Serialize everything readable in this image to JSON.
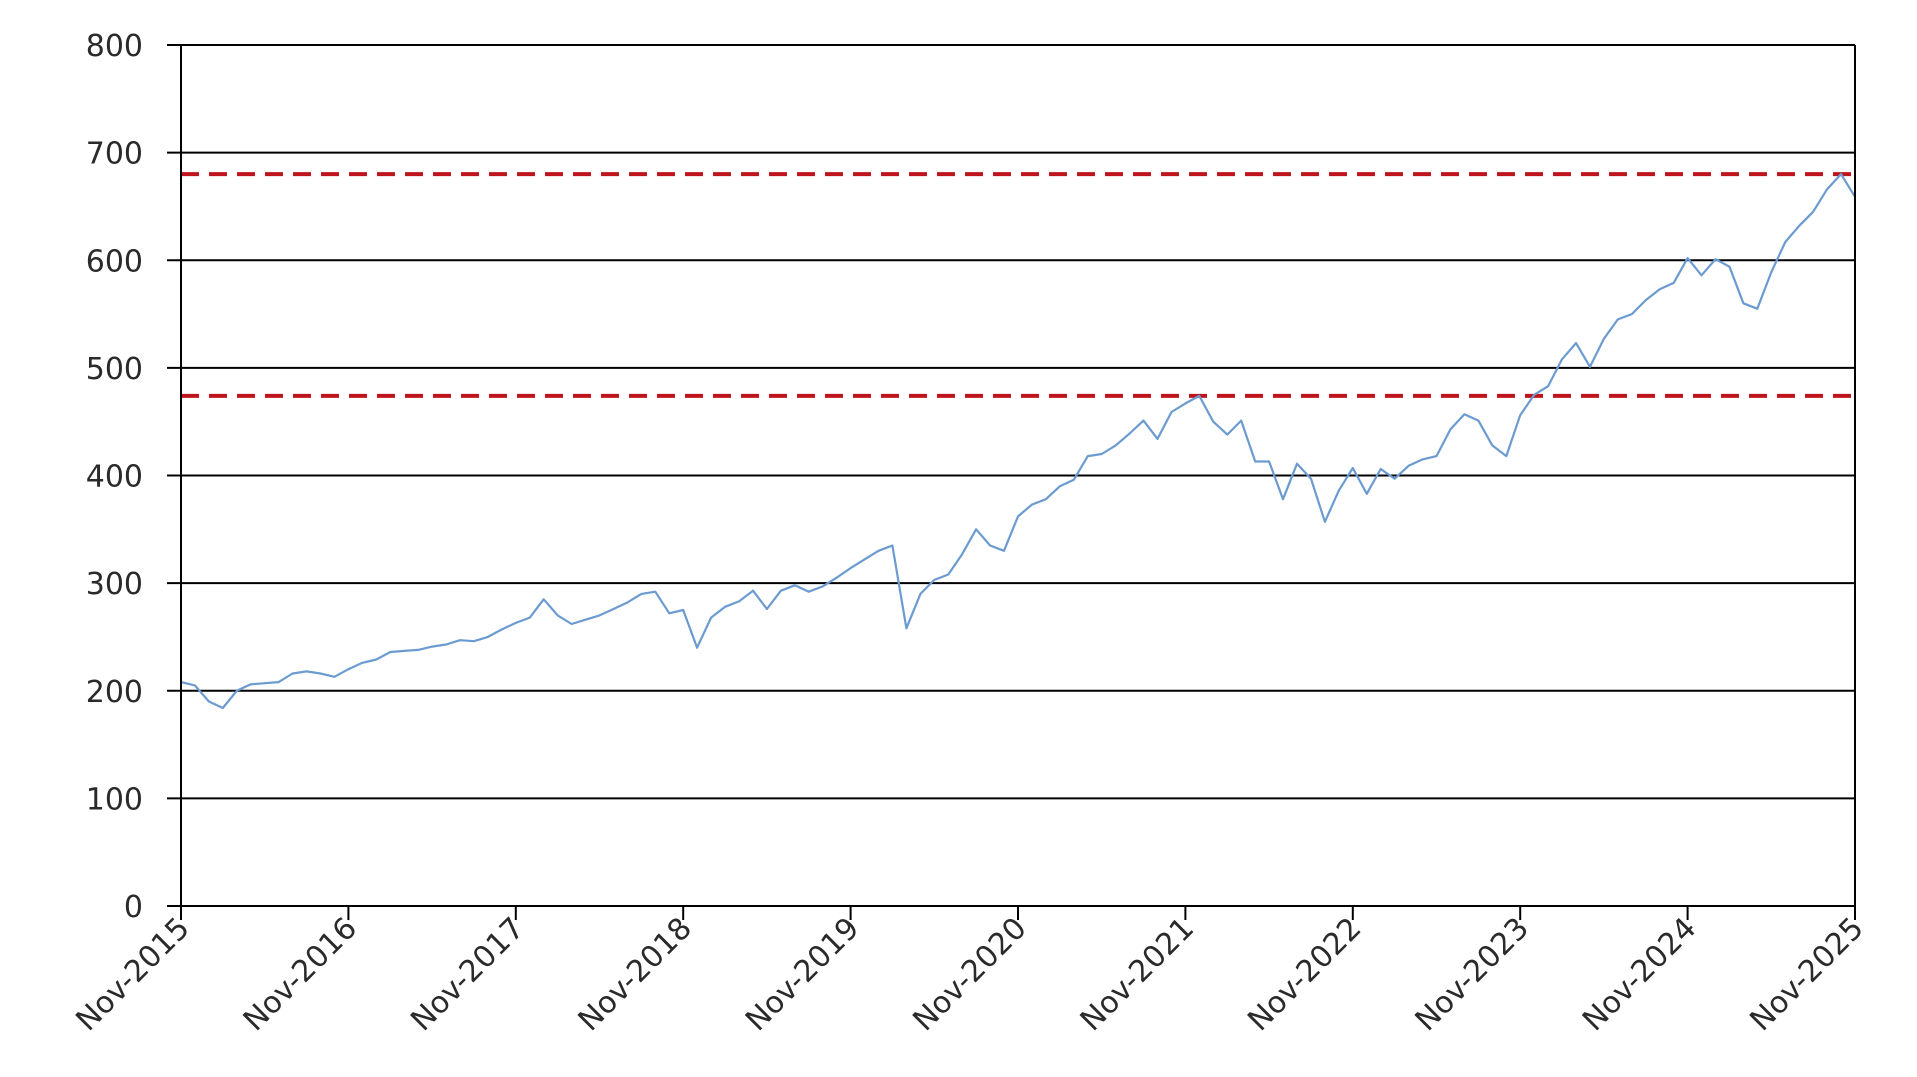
{
  "chart_data": {
    "type": "line",
    "title": "",
    "xlabel": "",
    "ylabel": "",
    "ylim": [
      0,
      800
    ],
    "yticks": [
      0,
      100,
      200,
      300,
      400,
      500,
      600,
      700,
      800
    ],
    "ytick_labels": [
      "0",
      "100",
      "200",
      "300",
      "400",
      "500",
      "600",
      "700",
      "800"
    ],
    "xlim": [
      "2015-11",
      "2025-11"
    ],
    "xticks": [
      "2015-11",
      "2016-11",
      "2017-11",
      "2018-11",
      "2019-11",
      "2020-11",
      "2021-11",
      "2022-11",
      "2023-11",
      "2024-11",
      "2025-11"
    ],
    "xtick_labels": [
      "Nov-2015",
      "Nov-2016",
      "Nov-2017",
      "Nov-2018",
      "Nov-2019",
      "Nov-2020",
      "Nov-2021",
      "Nov-2022",
      "Nov-2023",
      "Nov-2024",
      "Nov-2025"
    ],
    "grid": "horizontal",
    "legend": "none",
    "series": [
      {
        "color": "#6b9bd0",
        "x": [
          "2015-11",
          "2015-12",
          "2016-01",
          "2016-02",
          "2016-03",
          "2016-04",
          "2016-05",
          "2016-06",
          "2016-07",
          "2016-08",
          "2016-09",
          "2016-10",
          "2016-11",
          "2016-12",
          "2017-01",
          "2017-02",
          "2017-03",
          "2017-04",
          "2017-05",
          "2017-06",
          "2017-07",
          "2017-08",
          "2017-09",
          "2017-10",
          "2017-11",
          "2017-12",
          "2018-01",
          "2018-02",
          "2018-03",
          "2018-04",
          "2018-05",
          "2018-06",
          "2018-07",
          "2018-08",
          "2018-09",
          "2018-10",
          "2018-11",
          "2018-12",
          "2019-01",
          "2019-02",
          "2019-03",
          "2019-04",
          "2019-05",
          "2019-06",
          "2019-07",
          "2019-08",
          "2019-09",
          "2019-10",
          "2019-11",
          "2019-12",
          "2020-01",
          "2020-02",
          "2020-03",
          "2020-04",
          "2020-05",
          "2020-06",
          "2020-07",
          "2020-08",
          "2020-09",
          "2020-10",
          "2020-11",
          "2020-12",
          "2021-01",
          "2021-02",
          "2021-03",
          "2021-04",
          "2021-05",
          "2021-06",
          "2021-07",
          "2021-08",
          "2021-09",
          "2021-10",
          "2021-11",
          "2021-12",
          "2022-01",
          "2022-02",
          "2022-03",
          "2022-04",
          "2022-05",
          "2022-06",
          "2022-07",
          "2022-08",
          "2022-09",
          "2022-10",
          "2022-11",
          "2022-12",
          "2023-01",
          "2023-02",
          "2023-03",
          "2023-04",
          "2023-05",
          "2023-06",
          "2023-07",
          "2023-08",
          "2023-09",
          "2023-10",
          "2023-11",
          "2023-12",
          "2024-01",
          "2024-02",
          "2024-03",
          "2024-04",
          "2024-05",
          "2024-06",
          "2024-07",
          "2024-08",
          "2024-09",
          "2024-10",
          "2024-11",
          "2024-12",
          "2025-01",
          "2025-02",
          "2025-03",
          "2025-04",
          "2025-05",
          "2025-06",
          "2025-07",
          "2025-08",
          "2025-09",
          "2025-10",
          "2025-11"
        ],
        "values": [
          208,
          205,
          190,
          184,
          200,
          206,
          207,
          208,
          216,
          218,
          216,
          213,
          220,
          226,
          229,
          236,
          237,
          238,
          241,
          243,
          247,
          246,
          250,
          257,
          263,
          268,
          285,
          270,
          262,
          266,
          270,
          276,
          282,
          290,
          292,
          272,
          275,
          240,
          268,
          278,
          283,
          293,
          276,
          293,
          298,
          292,
          297,
          305,
          314,
          322,
          330,
          335,
          258,
          290,
          303,
          308,
          327,
          350,
          335,
          330,
          362,
          373,
          378,
          390,
          396,
          418,
          420,
          428,
          439,
          451,
          434,
          459,
          467,
          474,
          450,
          438,
          451,
          413,
          413,
          378,
          411,
          397,
          357,
          386,
          407,
          383,
          406,
          397,
          409,
          415,
          418,
          443,
          457,
          451,
          428,
          418,
          456,
          475,
          483,
          508,
          523,
          501,
          527,
          545,
          550,
          563,
          573,
          579,
          602,
          586,
          601,
          594,
          560,
          555,
          589,
          617,
          632,
          645,
          666,
          680,
          659
        ]
      }
    ],
    "reference_lines": [
      {
        "y": 680,
        "color": "#c0141c",
        "style": "dashed"
      },
      {
        "y": 474,
        "color": "#c0141c",
        "style": "dashed"
      }
    ]
  }
}
